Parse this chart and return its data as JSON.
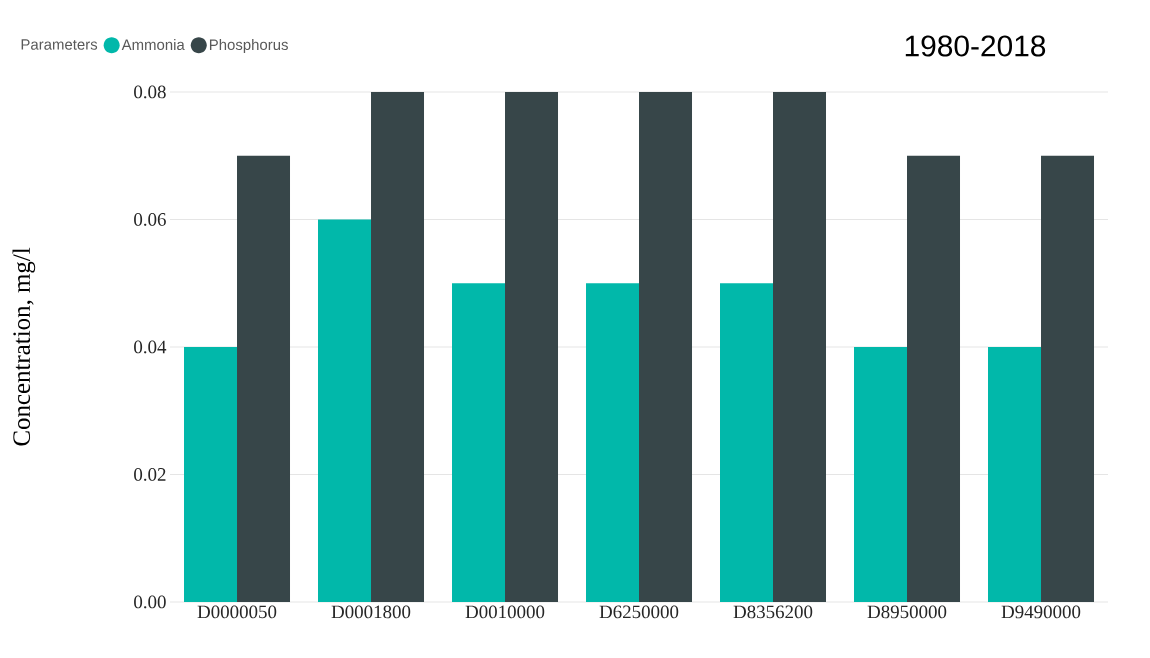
{
  "chart_data": {
    "type": "bar",
    "title": "1980-2018",
    "ylabel": "Concentration, mg/l",
    "legend_title": "Parameters",
    "legend": "top left",
    "grid": "y",
    "categories": [
      "D0000050",
      "D0001800",
      "D0010000",
      "D6250000",
      "D8356200",
      "D8950000",
      "D9490000"
    ],
    "series": [
      {
        "name": "Ammonia",
        "color": "#01b8aa",
        "values": [
          0.04,
          0.06,
          0.05,
          0.05,
          0.05,
          0.04,
          0.04
        ]
      },
      {
        "name": "Phosphorus",
        "color": "#374649",
        "values": [
          0.07,
          0.08,
          0.08,
          0.08,
          0.08,
          0.07,
          0.07
        ]
      }
    ],
    "ylim": [
      0,
      0.08
    ],
    "yticks": [
      {
        "value": 0,
        "label": "0.00"
      },
      {
        "value": 0.02,
        "label": "0.02"
      },
      {
        "value": 0.04,
        "label": "0.04"
      },
      {
        "value": 0.06,
        "label": "0.06"
      },
      {
        "value": 0.08,
        "label": "0.08"
      }
    ]
  }
}
